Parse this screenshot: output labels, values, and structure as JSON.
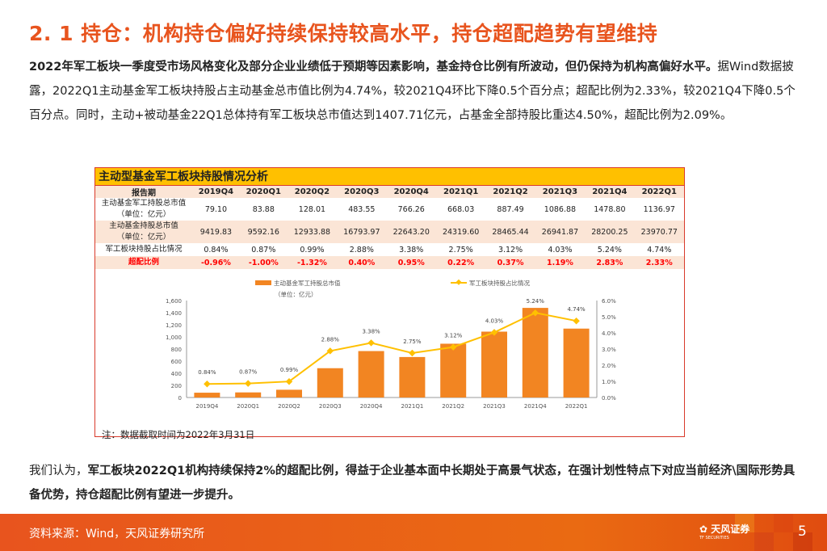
{
  "title": "2. 1 持仓：机构持仓偏好持续保持较高水平，持仓超配趋势有望维持",
  "p1": {
    "bold": "2022年军工板块一季度受市场风格变化及部分企业业绩低于预期等因素影响，基金持仓比例有所波动，但仍保持为机构高偏好水平。",
    "rest": "据Wind数据披露，2022Q1主动基金军工板块持股占主动基金总市值比例为4.74%，较2021Q4环比下降0.5个百分点；超配比例为2.33%，较2021Q4下降0.5个百分点。同时，主动+被动基金22Q1总体持有军工板块总市值达到1407.71亿元，占基金全部持股比重达4.50%，超配比例为2.09%。"
  },
  "table": {
    "title": "主动型基金军工板块持股情况分析",
    "header": [
      "报告期",
      "2019Q4",
      "2020Q1",
      "2020Q2",
      "2020Q3",
      "2020Q4",
      "2021Q1",
      "2021Q2",
      "2021Q3",
      "2021Q4",
      "2022Q1"
    ],
    "rows": [
      {
        "label": [
          "主动基金军工持股总市值",
          "（单位：亿元）"
        ],
        "values": [
          "79.10",
          "83.88",
          "128.01",
          "483.55",
          "766.26",
          "668.03",
          "887.49",
          "1086.88",
          "1478.80",
          "1136.97"
        ]
      },
      {
        "label": [
          "主动基金持股总市值",
          "（单位：亿元）"
        ],
        "values": [
          "9419.83",
          "9592.16",
          "12933.88",
          "16793.97",
          "22643.20",
          "24319.60",
          "28465.44",
          "26941.87",
          "28200.25",
          "23970.77"
        ]
      },
      {
        "label": [
          "军工板块持股占比情况"
        ],
        "values": [
          "0.84%",
          "0.87%",
          "0.99%",
          "2.88%",
          "3.38%",
          "2.75%",
          "3.12%",
          "4.03%",
          "5.24%",
          "4.74%"
        ]
      },
      {
        "label": [
          "超配比例"
        ],
        "values": [
          "-0.96%",
          "-1.00%",
          "-1.32%",
          "0.40%",
          "0.95%",
          "0.22%",
          "0.37%",
          "1.19%",
          "2.83%",
          "2.33%"
        ]
      }
    ]
  },
  "chart_data": {
    "type": "bar+line",
    "categories": [
      "2019Q4",
      "2020Q1",
      "2020Q2",
      "2020Q3",
      "2020Q4",
      "2021Q1",
      "2021Q2",
      "2021Q3",
      "2021Q4",
      "2022Q1"
    ],
    "series": [
      {
        "name": "主动基金军工持股总市值",
        "type": "bar",
        "axis": "left",
        "values": [
          79.1,
          83.88,
          128.01,
          483.55,
          766.26,
          668.03,
          887.49,
          1086.88,
          1478.8,
          1136.97
        ],
        "color": "#F28522"
      },
      {
        "name": "军工板块持股占比情况",
        "type": "line",
        "axis": "right",
        "values": [
          0.84,
          0.87,
          0.99,
          2.88,
          3.38,
          2.75,
          3.12,
          4.03,
          5.24,
          4.74
        ],
        "labels": [
          "0.84%",
          "0.87%",
          "0.99%",
          "2.88%",
          "3.38%",
          "2.75%",
          "3.12%",
          "4.03%",
          "5.24%",
          "4.74%"
        ],
        "color": "#FFC000"
      }
    ],
    "unit_note": "（单位：亿元）",
    "yleft": {
      "range": [
        0,
        1600
      ],
      "ticks": [
        "0",
        "200",
        "400",
        "600",
        "800",
        "1,000",
        "1,200",
        "1,400",
        "1,600"
      ]
    },
    "yright": {
      "range": [
        0,
        6
      ],
      "ticks": [
        "0.0%",
        "1.0%",
        "2.0%",
        "3.0%",
        "4.0%",
        "5.0%",
        "6.0%"
      ]
    },
    "legend": "top",
    "grid": false
  },
  "note": "注：数据截取时间为2022年3月31日",
  "p2": {
    "pre": "我们认为，",
    "bold": "军工板块2022Q1机构持续保持2%的超配比例，得益于企业基本面中长期处于高景气状态，在强计划性特点下对应当前经济\\国际形势具备优势，持仓超配比例有望进一步提升。"
  },
  "footer": {
    "source": "资料来源：Wind，天风证券研究所",
    "logo": "天风证券",
    "logo_sub": "TF SECURITIES",
    "page": "5"
  }
}
